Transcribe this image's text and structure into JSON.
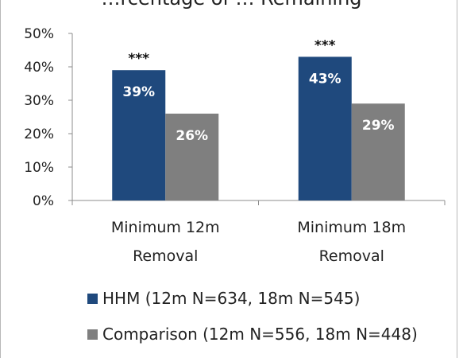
{
  "chart_data": {
    "type": "bar",
    "title": "…rcentage of … Remaining",
    "categories": [
      "Minimum 12m Removal",
      "Minimum 18m Removal"
    ],
    "category_lines": [
      [
        "Minimum 12m",
        "Removal"
      ],
      [
        "Minimum 18m",
        "Removal"
      ]
    ],
    "series": [
      {
        "name": "HHM (12m N=634, 18m N=545)",
        "values": [
          39,
          43
        ],
        "labels": [
          "39%",
          "43%"
        ],
        "color": "#1f497d"
      },
      {
        "name": "Comparison (12m N=556, 18m N=448)",
        "values": [
          26,
          29
        ],
        "labels": [
          "26%",
          "29%"
        ],
        "color": "#7f7f7f"
      }
    ],
    "significance": [
      "***",
      "***"
    ],
    "yticks": [
      "0%",
      "10%",
      "20%",
      "30%",
      "40%",
      "50%"
    ],
    "ylim": [
      0,
      50
    ],
    "legend_position": "bottom",
    "grid": false
  }
}
